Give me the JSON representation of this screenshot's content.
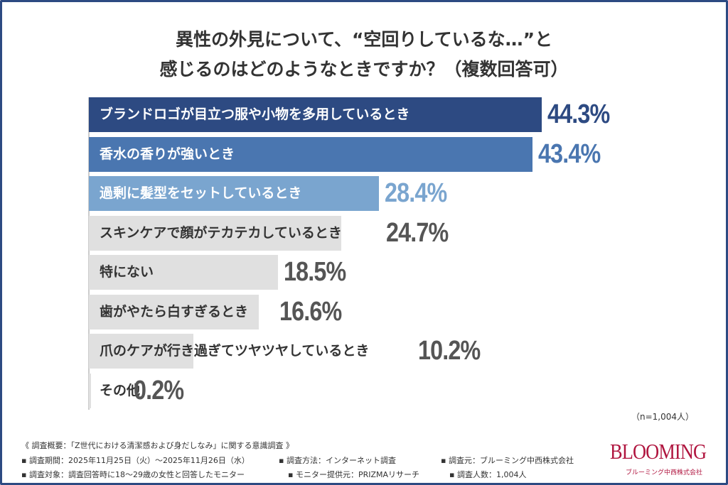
{
  "chart_data": {
    "type": "bar",
    "orientation": "horizontal",
    "title": "異性の外見について、“空回りしているな…”と感じるのはどのようなときですか？（複数回答可）",
    "title_lines": [
      "異性の外見について、“空回りしているな…”と",
      "感じるのはどのようなときですか？（複数回答可）"
    ],
    "categories": [
      "ブランドロゴが目立つ服や小物を多用しているとき",
      "香水の香りが強いとき",
      "過剰に髪型をセットしているとき",
      "スキンケアで顔がテカテカしているとき",
      "特にない",
      "歯がやたら白すぎるとき",
      "爪のケアが行き過ぎてツヤツヤしているとき",
      "その他"
    ],
    "values": [
      44.3,
      43.4,
      28.4,
      24.7,
      18.5,
      16.6,
      10.2,
      0.2
    ],
    "value_labels": [
      "44.3%",
      "43.4%",
      "28.4%",
      "24.7%",
      "18.5%",
      "16.6%",
      "10.2%",
      "0.2%"
    ],
    "unit": "%",
    "bar_colors": [
      "#2d4a82",
      "#4a76b0",
      "#7aa5cf",
      "#e0e0e0",
      "#e0e0e0",
      "#e0e0e0",
      "#e0e0e0",
      "#e0e0e0"
    ],
    "value_colors": [
      "#2d4a82",
      "#4a76b0",
      "#7aa5cf",
      "#555555",
      "#555555",
      "#555555",
      "#555555",
      "#555555"
    ],
    "grid": false,
    "note": "（n=1,004人）"
  },
  "footer": {
    "overview": "《 調査概要：「Z世代における清潔感および身だしなみ」に関する意識調査 》",
    "period": "▪ 調査期間：2025年11月25日（火）～2025年11月26日（水）",
    "method": "▪ 調査方法：インターネット調査",
    "org": "▪ 調査元：ブルーミング中西株式会社",
    "target": "▪ 調査対象：調査回答時に18～29歳の女性と回答したモニター",
    "provider": "▪ モニター提供元：PRIZMAリサーチ",
    "count": "▪ 調査人数：1,004人"
  },
  "logo": {
    "main": "BLOOMING",
    "sub": "ブルーミング中西株式会社"
  }
}
